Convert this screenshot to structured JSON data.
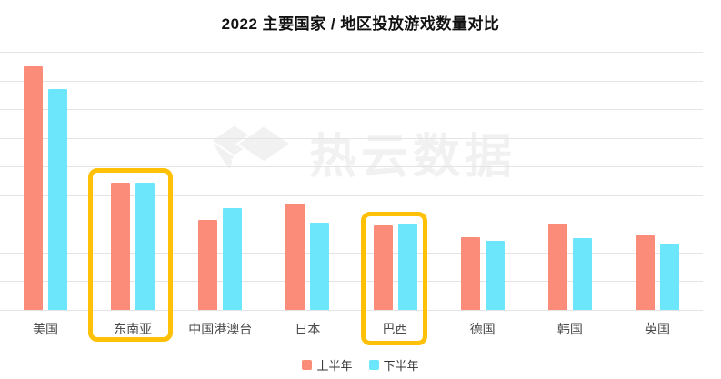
{
  "chart": {
    "title": "2022 主要国家 / 地区投放游戏数量对比"
  },
  "watermark": {
    "text": "热云数据",
    "logo_icon": "gem-logo-icon",
    "color": "#f1f1f1"
  },
  "legend": {
    "items": [
      {
        "label": "上半年",
        "color": "#FB8C7A"
      },
      {
        "label": "下半年",
        "color": "#6CE6FA"
      }
    ]
  },
  "chart_data": {
    "type": "bar",
    "title": "2022 主要国家 / 地区投放游戏数量对比",
    "categories": [
      "美国",
      "东南亚",
      "中国港澳台",
      "日本",
      "巴西",
      "德国",
      "韩国",
      "英国"
    ],
    "series": [
      {
        "name": "上半年",
        "color": "#FB8C7A",
        "values": [
          8.5,
          4.45,
          3.15,
          3.7,
          2.95,
          2.55,
          3.0,
          2.6
        ]
      },
      {
        "name": "下半年",
        "color": "#6CE6FA",
        "values": [
          7.7,
          4.45,
          3.55,
          3.05,
          3.0,
          2.4,
          2.5,
          2.3
        ]
      }
    ],
    "xlabel": "",
    "ylabel": "",
    "ylim": [
      0,
      9
    ],
    "y_axis_labels_visible": false,
    "values_unit": "relative gridline units (no numeric axis labels shown in image)",
    "grid": true,
    "gridline_color": "#e4e4e4",
    "legend_position": "bottom",
    "highlighted_categories": [
      "东南亚",
      "巴西"
    ],
    "highlight_color": "#FFC107"
  }
}
